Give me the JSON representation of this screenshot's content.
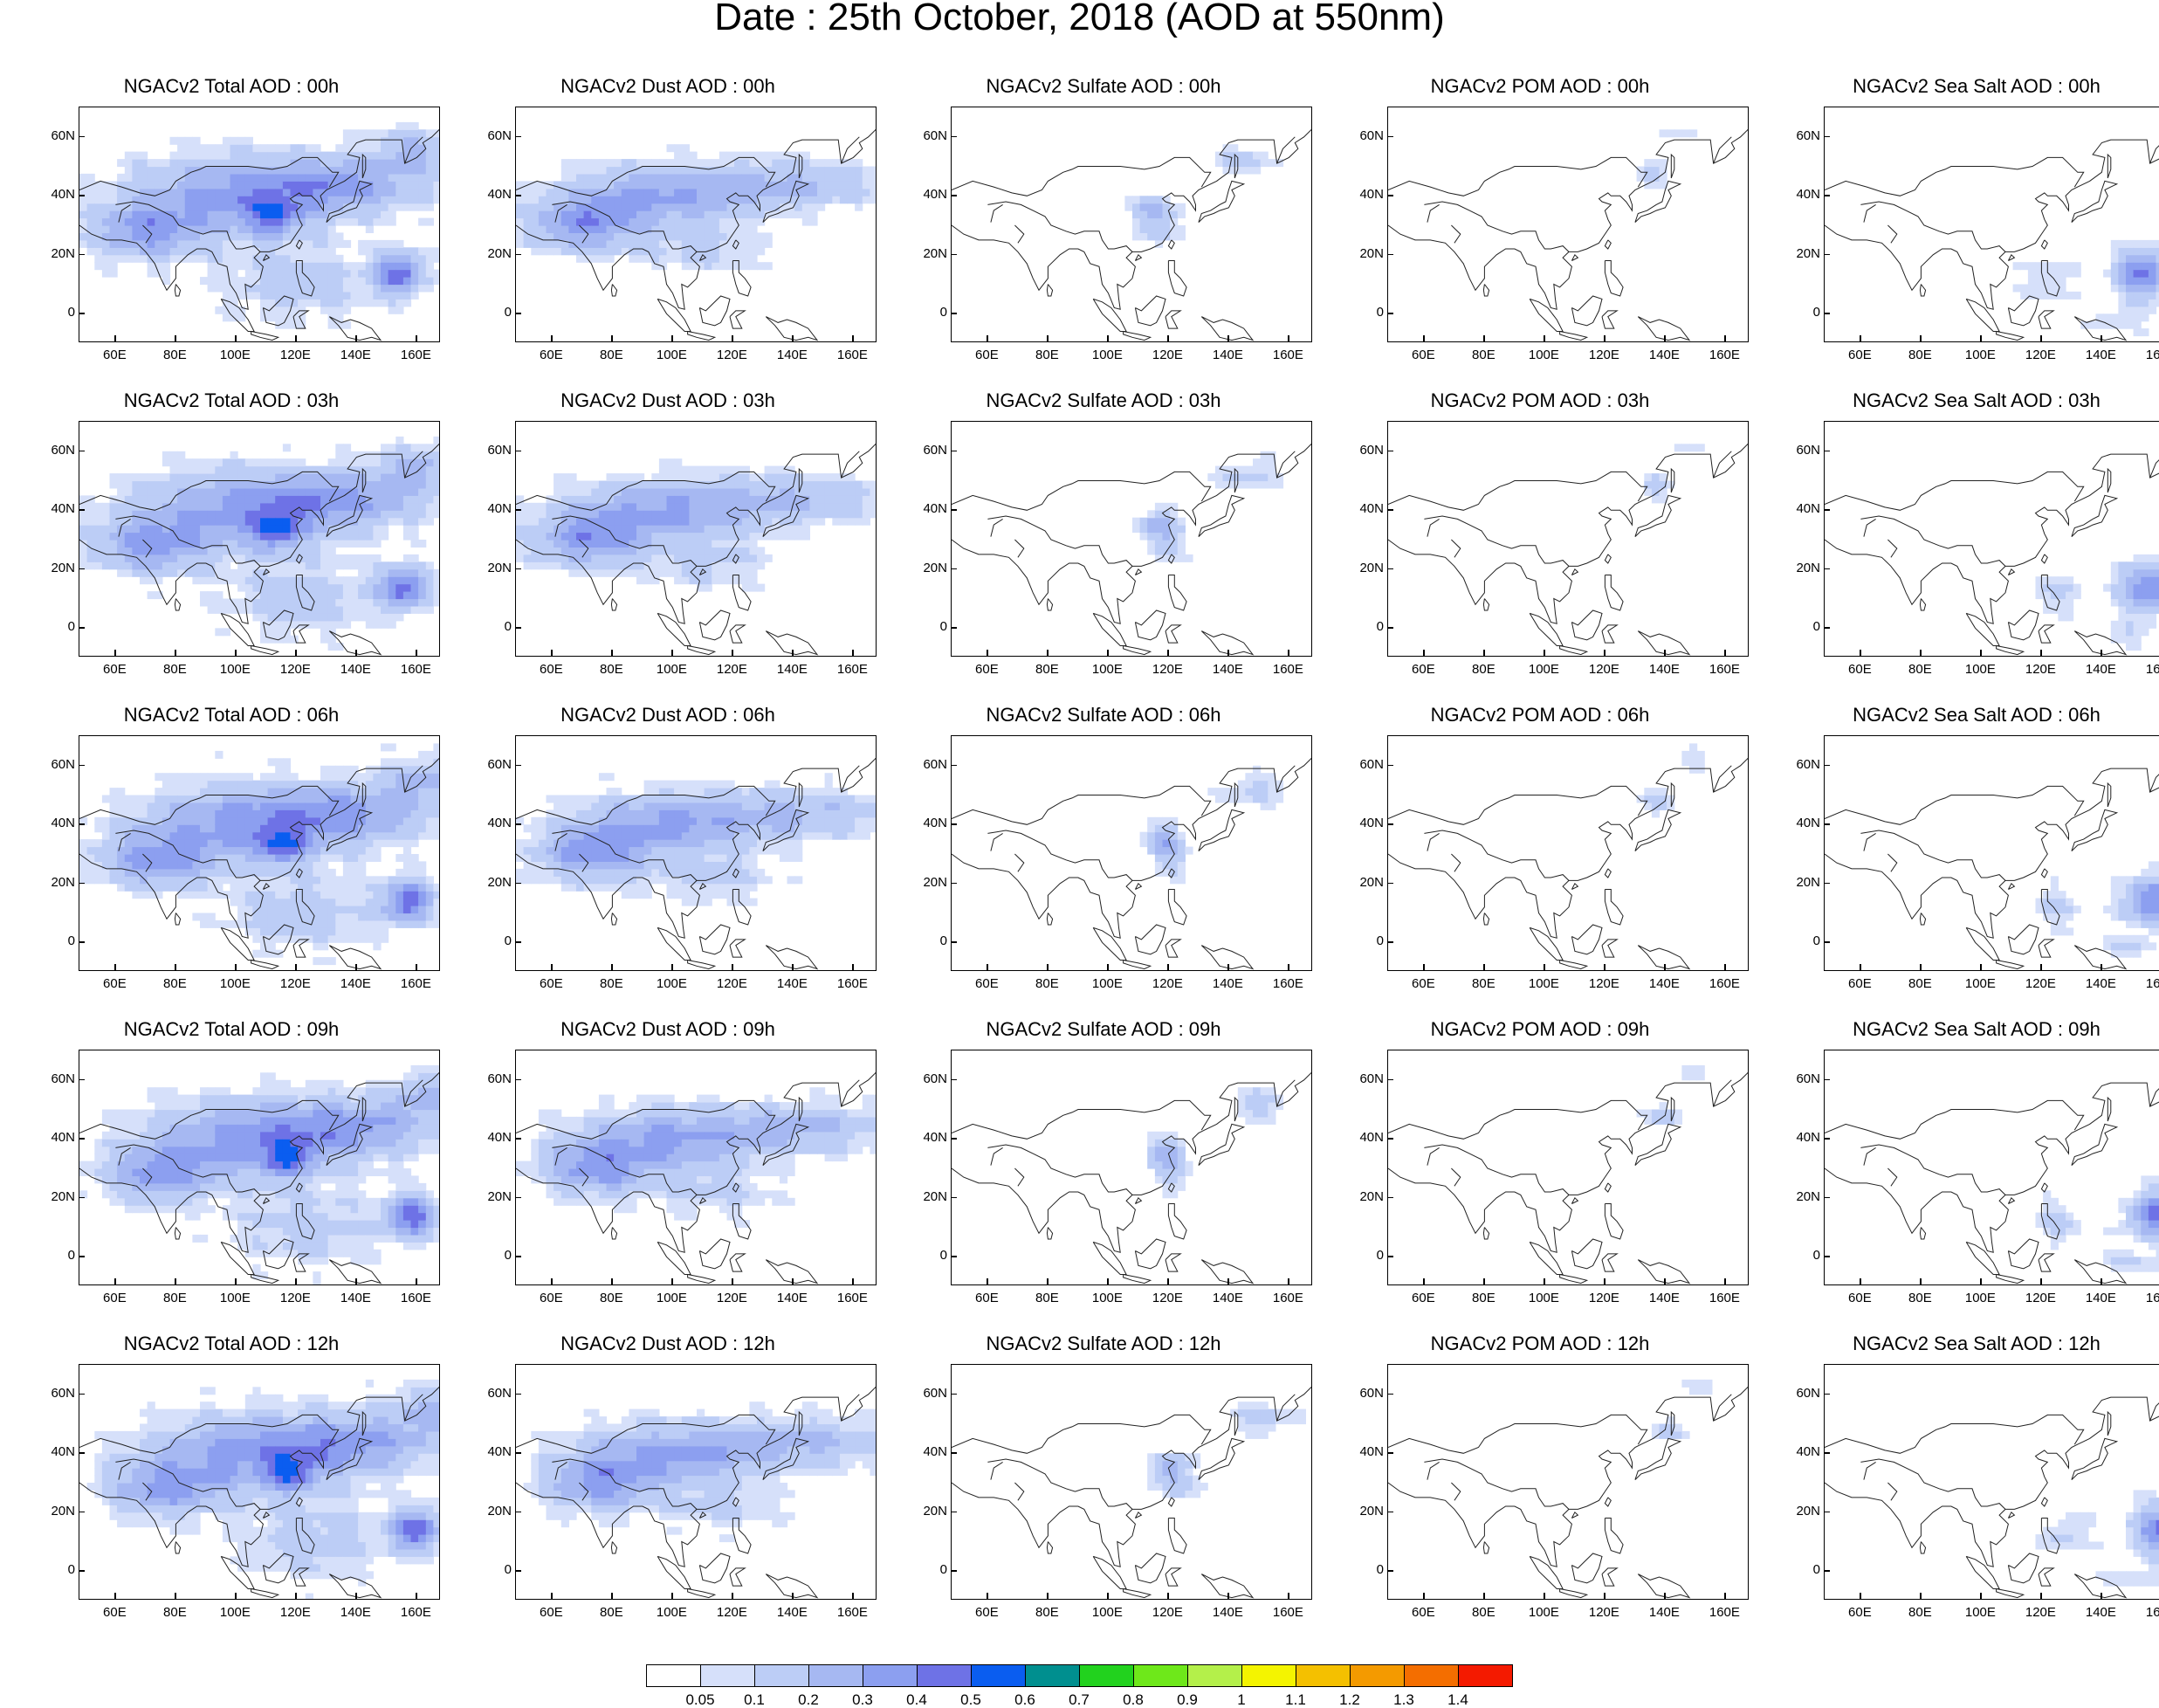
{
  "title": "Date : 25th October, 2018 (AOD at 550nm)",
  "map_axes": {
    "lon_ticks": [
      "60E",
      "80E",
      "100E",
      "120E",
      "140E",
      "160E"
    ],
    "lat_ticks": [
      "60N",
      "40N",
      "20N",
      "0"
    ],
    "lon_range": [
      48,
      168
    ],
    "lat_range": [
      -10,
      70
    ]
  },
  "panels": [
    {
      "title": "NGACv2 Total AOD : 00h",
      "species": "total",
      "hour": "00h"
    },
    {
      "title": "NGACv2 Dust AOD : 00h",
      "species": "dust",
      "hour": "00h"
    },
    {
      "title": "NGACv2 Sulfate AOD : 00h",
      "species": "sulfate",
      "hour": "00h"
    },
    {
      "title": "NGACv2 POM AOD : 00h",
      "species": "pom",
      "hour": "00h"
    },
    {
      "title": "NGACv2 Sea Salt AOD : 00h",
      "species": "seasalt",
      "hour": "00h"
    },
    {
      "title": "NGACv2 Total AOD : 03h",
      "species": "total",
      "hour": "03h"
    },
    {
      "title": "NGACv2 Dust AOD : 03h",
      "species": "dust",
      "hour": "03h"
    },
    {
      "title": "NGACv2 Sulfate AOD : 03h",
      "species": "sulfate",
      "hour": "03h"
    },
    {
      "title": "NGACv2 POM AOD : 03h",
      "species": "pom",
      "hour": "03h"
    },
    {
      "title": "NGACv2 Sea Salt AOD : 03h",
      "species": "seasalt",
      "hour": "03h"
    },
    {
      "title": "NGACv2 Total AOD : 06h",
      "species": "total",
      "hour": "06h"
    },
    {
      "title": "NGACv2 Dust AOD : 06h",
      "species": "dust",
      "hour": "06h"
    },
    {
      "title": "NGACv2 Sulfate AOD : 06h",
      "species": "sulfate",
      "hour": "06h"
    },
    {
      "title": "NGACv2 POM AOD : 06h",
      "species": "pom",
      "hour": "06h"
    },
    {
      "title": "NGACv2 Sea Salt AOD : 06h",
      "species": "seasalt",
      "hour": "06h"
    },
    {
      "title": "NGACv2 Total AOD : 09h",
      "species": "total",
      "hour": "09h"
    },
    {
      "title": "NGACv2 Dust AOD : 09h",
      "species": "dust",
      "hour": "09h"
    },
    {
      "title": "NGACv2 Sulfate AOD : 09h",
      "species": "sulfate",
      "hour": "09h"
    },
    {
      "title": "NGACv2 POM AOD : 09h",
      "species": "pom",
      "hour": "09h"
    },
    {
      "title": "NGACv2 Sea Salt  AOD : 09h",
      "species": "seasalt",
      "hour": "09h"
    },
    {
      "title": "NGACv2 Total AOD  : 12h",
      "species": "total",
      "hour": "12h"
    },
    {
      "title": "NGACv2 Dust AOD : 12h",
      "species": "dust",
      "hour": "12h"
    },
    {
      "title": "NGACv2 Sulfate AOD : 12h",
      "species": "sulfate",
      "hour": "12h"
    },
    {
      "title": "NGACv2 POM  AOD : 12h",
      "species": "pom",
      "hour": "12h"
    },
    {
      "title": "NGACv2 Sea Salt  AOD : 12h",
      "species": "seasalt",
      "hour": "12h"
    }
  ],
  "colorbar": {
    "labels": [
      "0.05",
      "0.1",
      "0.2",
      "0.3",
      "0.4",
      "0.5",
      "0.6",
      "0.7",
      "0.8",
      "0.9",
      "1",
      "1.1",
      "1.2",
      "1.3",
      "1.4"
    ],
    "colors": [
      "#ffffff",
      "#d6e0fa",
      "#bccdf6",
      "#a6b8f2",
      "#8c9ff0",
      "#6e72e6",
      "#0a5df0",
      "#008f8f",
      "#22d21e",
      "#6ee81a",
      "#b4f04a",
      "#f4f400",
      "#f4c000",
      "#f49a00",
      "#f46e00",
      "#f41a00"
    ]
  }
}
